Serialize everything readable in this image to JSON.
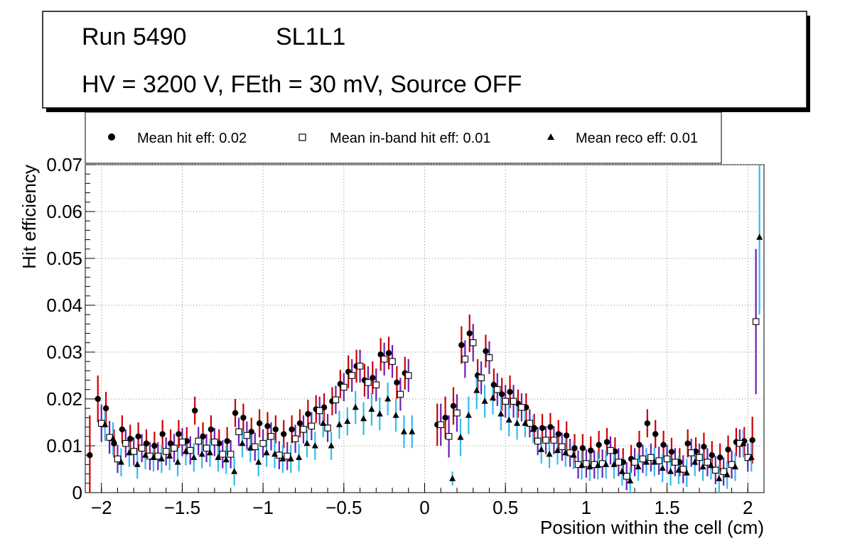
{
  "header": {
    "run": "Run 5490",
    "layer": "SL1L1",
    "conditions": "HV = 3200 V, FEth = 30 mV, Source OFF"
  },
  "legend": {
    "hit": "Mean hit  eff: 0.02",
    "inband": "Mean in-band hit eff: 0.01",
    "reco": "Mean reco eff: 0.01"
  },
  "colors": {
    "hit_error": "#cc0000",
    "inband_error": "#6a1fb8",
    "reco_error": "#33bbee"
  },
  "chart_data": {
    "type": "scatter",
    "xlabel": "Position within the cell (cm)",
    "ylabel": "Hit efficiency",
    "xlim": [
      -2.1,
      2.1
    ],
    "ylim": [
      0,
      0.07
    ],
    "xticks": [
      -2,
      -1.5,
      -1,
      -0.5,
      0,
      0.5,
      1,
      1.5,
      2
    ],
    "xtick_labels": [
      "−2",
      "−1.5",
      "−1",
      "−0.5",
      "0",
      "0.5",
      "1",
      "1.5",
      "2"
    ],
    "yticks": [
      0,
      0.01,
      0.02,
      0.03,
      0.04,
      0.05,
      0.06,
      0.07
    ],
    "ytick_labels": [
      "0",
      "0.01",
      "0.02",
      "0.03",
      "0.04",
      "0.05",
      "0.06",
      "0.07"
    ],
    "grid": true,
    "x": [
      -2.05,
      -2.0,
      -1.95,
      -1.9,
      -1.85,
      -1.8,
      -1.75,
      -1.7,
      -1.65,
      -1.6,
      -1.55,
      -1.5,
      -1.45,
      -1.4,
      -1.35,
      -1.3,
      -1.25,
      -1.2,
      -1.15,
      -1.1,
      -1.05,
      -1.0,
      -0.95,
      -0.9,
      -0.85,
      -0.8,
      -0.75,
      -0.7,
      -0.65,
      -0.6,
      -0.55,
      -0.5,
      -0.45,
      -0.4,
      -0.35,
      -0.3,
      -0.25,
      -0.2,
      -0.15,
      -0.1,
      0.1,
      0.15,
      0.2,
      0.25,
      0.3,
      0.35,
      0.4,
      0.45,
      0.5,
      0.55,
      0.6,
      0.65,
      0.7,
      0.75,
      0.8,
      0.85,
      0.9,
      0.95,
      1.0,
      1.05,
      1.1,
      1.15,
      1.2,
      1.25,
      1.3,
      1.35,
      1.4,
      1.45,
      1.5,
      1.55,
      1.6,
      1.65,
      1.7,
      1.75,
      1.8,
      1.85,
      1.9,
      1.95,
      2.0,
      2.05
    ],
    "series": [
      {
        "name": "Mean hit  eff: 0.02",
        "marker": "circle",
        "values": [
          0.008,
          0.02,
          0.018,
          0.0105,
          0.0135,
          0.0115,
          0.012,
          0.0105,
          0.01,
          0.0125,
          0.0105,
          0.0125,
          0.011,
          0.0175,
          0.012,
          0.0135,
          0.0105,
          0.011,
          0.017,
          0.016,
          0.013,
          0.0148,
          0.0142,
          0.0135,
          0.0125,
          0.0135,
          0.0148,
          0.0168,
          0.0178,
          0.0182,
          0.0195,
          0.0232,
          0.0258,
          0.027,
          0.024,
          0.0245,
          0.0295,
          0.0298,
          0.0235,
          0.0255,
          0.0145,
          0.016,
          0.0185,
          0.0315,
          0.034,
          0.025,
          0.0302,
          0.023,
          0.021,
          0.0215,
          0.019,
          0.0182,
          0.0138,
          0.0138,
          0.014,
          0.0125,
          0.0122,
          0.0095,
          0.0095,
          0.009,
          0.0102,
          0.0108,
          0.0088,
          0.0065,
          0.0072,
          0.0102,
          0.0148,
          0.0125,
          0.0102,
          0.0087,
          0.0065,
          0.0105,
          0.0088,
          0.0098,
          0.008,
          0.0075,
          0.0092,
          0.0108,
          0.011,
          0.0112
        ],
        "errors": [
          0.0085,
          0.005,
          0.0035,
          0.003,
          0.003,
          0.003,
          0.003,
          0.003,
          0.003,
          0.003,
          0.003,
          0.003,
          0.003,
          0.003,
          0.003,
          0.003,
          0.003,
          0.003,
          0.003,
          0.003,
          0.003,
          0.003,
          0.003,
          0.003,
          0.003,
          0.003,
          0.003,
          0.003,
          0.003,
          0.003,
          0.003,
          0.003,
          0.0035,
          0.0035,
          0.0035,
          0.0035,
          0.0035,
          0.0035,
          0.0035,
          0.0035,
          0.0045,
          0.0045,
          0.004,
          0.004,
          0.004,
          0.0035,
          0.0035,
          0.0035,
          0.0035,
          0.0035,
          0.003,
          0.003,
          0.003,
          0.003,
          0.003,
          0.003,
          0.003,
          0.003,
          0.003,
          0.003,
          0.003,
          0.003,
          0.003,
          0.003,
          0.003,
          0.003,
          0.003,
          0.003,
          0.003,
          0.003,
          0.003,
          0.003,
          0.003,
          0.003,
          0.003,
          0.003,
          0.003,
          0.003,
          0.003,
          0.005
        ]
      },
      {
        "name": "Mean in-band hit eff: 0.01",
        "marker": "open-square",
        "values": [
          0.0,
          0.0148,
          0.0118,
          0.0072,
          0.0105,
          0.0088,
          0.0095,
          0.0078,
          0.0078,
          0.0088,
          0.0095,
          0.0108,
          0.009,
          0.011,
          0.0095,
          0.0108,
          0.0082,
          0.0082,
          0.013,
          0.0122,
          0.0098,
          0.0105,
          0.012,
          0.008,
          0.0078,
          0.0115,
          0.0135,
          0.0142,
          0.0175,
          0.0138,
          0.0198,
          0.0225,
          0.025,
          0.027,
          0.0235,
          0.023,
          0.0285,
          0.028,
          0.021,
          0.025,
          0.0145,
          0.012,
          0.017,
          0.0285,
          0.032,
          0.0245,
          0.0288,
          0.022,
          0.0195,
          0.0195,
          0.0182,
          0.0148,
          0.011,
          0.0112,
          0.0112,
          0.0098,
          0.0085,
          0.006,
          0.0062,
          0.006,
          0.0062,
          0.009,
          0.0065,
          0.0035,
          0.0065,
          0.0072,
          0.0075,
          0.0068,
          0.0072,
          0.0065,
          0.005,
          0.0085,
          0.0075,
          0.0065,
          0.0048,
          0.0045,
          0.006,
          0.0105,
          0.0075,
          0.0365
        ],
        "errors": [
          0.0,
          0.004,
          0.0035,
          0.003,
          0.003,
          0.003,
          0.003,
          0.003,
          0.003,
          0.003,
          0.003,
          0.003,
          0.003,
          0.003,
          0.003,
          0.003,
          0.003,
          0.003,
          0.003,
          0.003,
          0.003,
          0.003,
          0.003,
          0.003,
          0.003,
          0.003,
          0.003,
          0.003,
          0.003,
          0.003,
          0.003,
          0.003,
          0.0035,
          0.0035,
          0.0035,
          0.0035,
          0.0035,
          0.0035,
          0.0035,
          0.0035,
          0.0045,
          0.0045,
          0.004,
          0.004,
          0.004,
          0.0035,
          0.0035,
          0.0035,
          0.0035,
          0.0035,
          0.003,
          0.003,
          0.003,
          0.003,
          0.003,
          0.003,
          0.003,
          0.003,
          0.003,
          0.003,
          0.003,
          0.003,
          0.003,
          0.003,
          0.003,
          0.003,
          0.003,
          0.003,
          0.003,
          0.003,
          0.003,
          0.003,
          0.003,
          0.003,
          0.003,
          0.003,
          0.003,
          0.003,
          0.003,
          0.0155
        ]
      },
      {
        "name": "Mean reco eff: 0.01",
        "marker": "triangle",
        "values": [
          0.0,
          0.0145,
          0.0115,
          0.0065,
          0.0085,
          0.006,
          0.008,
          0.0075,
          0.0072,
          0.0078,
          0.0065,
          0.0088,
          0.0075,
          0.0082,
          0.0085,
          0.0075,
          0.007,
          0.0045,
          0.0105,
          0.0095,
          0.0065,
          0.0085,
          0.0082,
          0.0072,
          0.0072,
          0.0075,
          0.0105,
          0.01,
          0.0148,
          0.01,
          0.0145,
          0.0152,
          0.0182,
          0.0158,
          0.0178,
          0.0168,
          0.02,
          0.0165,
          0.013,
          0.013,
          0.0,
          0.003,
          0.0118,
          0.0165,
          0.0218,
          0.0195,
          0.0202,
          0.0168,
          0.0155,
          0.0148,
          0.0148,
          0.0135,
          0.0092,
          0.0082,
          0.009,
          0.0085,
          0.008,
          0.0058,
          0.0055,
          0.0058,
          0.006,
          0.006,
          0.0045,
          0.0025,
          0.0055,
          0.0065,
          0.0065,
          0.0052,
          0.0045,
          0.0048,
          0.0042,
          0.0065,
          0.0055,
          0.0058,
          0.003,
          0.0038,
          0.0055,
          0.0105,
          0.0075,
          0.0545
        ],
        "errors": [
          0.0,
          0.0035,
          0.0035,
          0.003,
          0.003,
          0.003,
          0.003,
          0.003,
          0.003,
          0.003,
          0.003,
          0.003,
          0.003,
          0.003,
          0.003,
          0.003,
          0.003,
          0.003,
          0.003,
          0.003,
          0.003,
          0.003,
          0.003,
          0.003,
          0.003,
          0.003,
          0.003,
          0.003,
          0.003,
          0.003,
          0.003,
          0.003,
          0.0035,
          0.0035,
          0.0035,
          0.0035,
          0.0035,
          0.0035,
          0.0035,
          0.0035,
          0.0,
          0.0015,
          0.004,
          0.004,
          0.004,
          0.0035,
          0.0035,
          0.0035,
          0.0035,
          0.0035,
          0.003,
          0.003,
          0.003,
          0.003,
          0.003,
          0.003,
          0.003,
          0.003,
          0.003,
          0.003,
          0.003,
          0.003,
          0.003,
          0.003,
          0.003,
          0.003,
          0.003,
          0.003,
          0.003,
          0.003,
          0.003,
          0.003,
          0.003,
          0.003,
          0.003,
          0.003,
          0.003,
          0.003,
          0.003,
          0.0165
        ]
      }
    ]
  }
}
